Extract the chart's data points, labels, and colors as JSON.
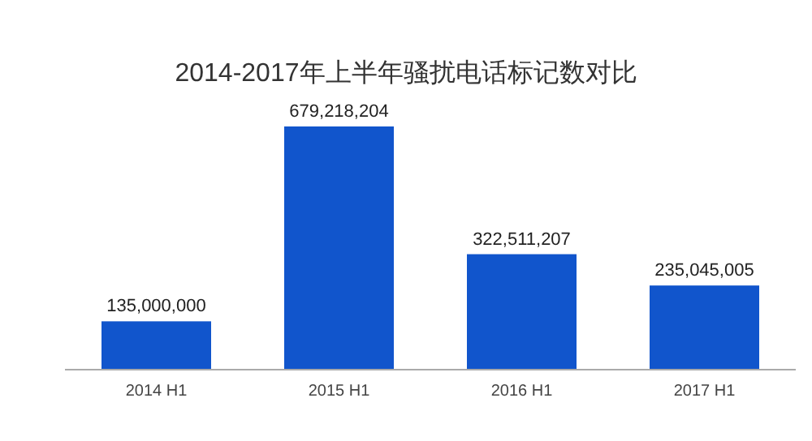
{
  "chart_data": {
    "type": "bar",
    "title": "2014-2017年上半年骚扰电话标记数对比",
    "categories": [
      "2014 H1",
      "2015 H1",
      "2016 H1",
      "2017 H1"
    ],
    "values": [
      135000000,
      679218204,
      322511207,
      235045005
    ],
    "value_labels": [
      "135,000,000",
      "679,218,204",
      "322,511,207",
      "235,045,005"
    ],
    "color": "#1155cc"
  }
}
